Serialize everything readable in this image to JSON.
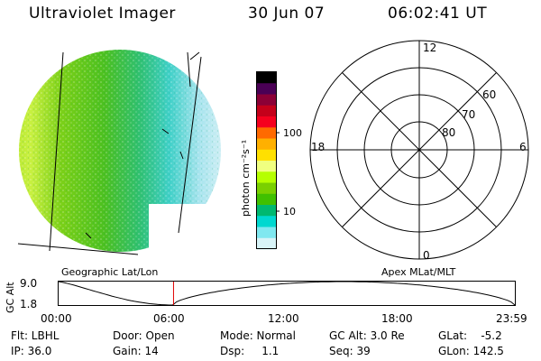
{
  "header": {
    "instrument": "Ultraviolet Imager",
    "date": "30 Jun 07",
    "time": "06:02:41 UT"
  },
  "colorbar": {
    "label": "photon cm⁻²s⁻¹",
    "ticks": [
      "100",
      "10"
    ],
    "colors": [
      "#000000",
      "#4a0055",
      "#8b0036",
      "#c4001a",
      "#f5001e",
      "#ff6a00",
      "#ffb000",
      "#ffe000",
      "#f0ff80",
      "#b6ff00",
      "#7ad000",
      "#40c000",
      "#00b870",
      "#00d8d0",
      "#80e8f0",
      "#d8f4f8"
    ]
  },
  "polar_grid": {
    "mlt_labels": [
      "12",
      "18",
      "6",
      "0"
    ],
    "mlat_labels": [
      "60",
      "70",
      "80"
    ]
  },
  "timeline": {
    "left_caption": "Geographic Lat/Lon",
    "right_caption": "Apex MLat/MLT",
    "axis_label": "GC Alt",
    "y_ticks": [
      "9.0",
      "1.8"
    ],
    "x_ticks": [
      "00:00",
      "06:00",
      "12:00",
      "18:00",
      "23:59"
    ],
    "marker_time_hours": 6.045,
    "marker_color": "#e00000"
  },
  "info": {
    "flt": "Flt: LBHL",
    "ip": "IP: 36.0",
    "door": "Door: Open",
    "gain": "Gain: 14",
    "mode": "Mode: Normal",
    "dsp": "Dsp:     1.1",
    "gc_alt": "GC Alt: 3.0 Re",
    "seq": "Seq: 39",
    "glat": "GLat:    -5.2",
    "glon": "GLon: 142.5"
  }
}
